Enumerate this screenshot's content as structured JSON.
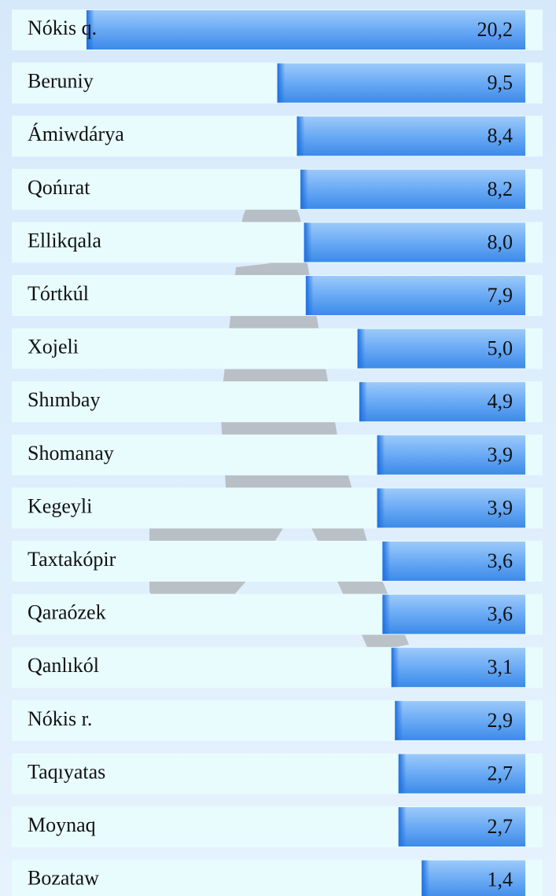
{
  "chart_data": {
    "type": "bar",
    "orientation": "horizontal",
    "categories": [
      "Nókis q.",
      "Beruniy",
      "Ámiwdárya",
      "Qońırat",
      "Ellikqala",
      "Tórtkúl",
      "Xojeli",
      "Shımbay",
      "Shomanay",
      "Kegeyli",
      "Taxtakópir",
      "Qaraózek",
      "Qanlıkól",
      "Nókis r.",
      "Taqıyatas",
      "Moynaq",
      "Bozataw"
    ],
    "values": [
      20.2,
      9.5,
      8.4,
      8.2,
      8.0,
      7.9,
      5.0,
      4.9,
      3.9,
      3.9,
      3.6,
      3.6,
      3.1,
      2.9,
      2.7,
      2.7,
      1.4
    ],
    "value_labels": [
      "20,2",
      "9,5",
      "8,4",
      "8,2",
      "8,0",
      "7,9",
      "5,0",
      "4,9",
      "3,9",
      "3,9",
      "3,6",
      "3,6",
      "3,1",
      "2,9",
      "2,7",
      "2,7",
      "1,4"
    ],
    "color": "#6aaaf5"
  }
}
